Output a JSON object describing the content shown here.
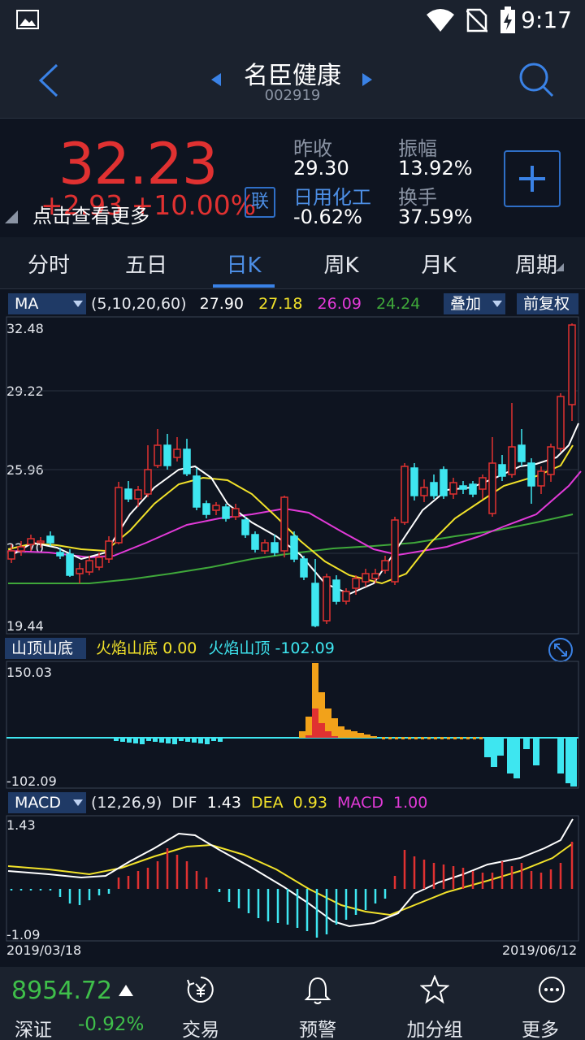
{
  "status": {
    "time": "9:17"
  },
  "header": {
    "title": "名臣健康",
    "code": "002919"
  },
  "quote": {
    "price": "32.23",
    "change": "+2.93  +10.00%",
    "tip": "点击查看更多",
    "link_badge": "联",
    "prev_close_label": "昨收",
    "prev_close": "29.30",
    "amplitude_label": "振幅",
    "amplitude": "13.92%",
    "sector_label": "日用化工",
    "sector_change": "-0.62%",
    "turnover_label": "换手",
    "turnover": "37.59%"
  },
  "tabs": [
    "分时",
    "五日",
    "日K",
    "周K",
    "月K",
    "周期"
  ],
  "active_tab": 2,
  "ma_bar": {
    "selector": "MA",
    "params": "(5,10,20,60)",
    "ma5": "27.90",
    "ma10": "27.18",
    "ma20": "26.09",
    "ma60": "24.24",
    "overlay_btn": "叠加",
    "adjust_btn": "前复权"
  },
  "price_axis": [
    "32.48",
    "29.22",
    "25.96",
    "22.70",
    "19.44"
  ],
  "indicator_bar": {
    "selector": "山顶山底",
    "label1": "火焰山底",
    "value1": "0.00",
    "label2": "火焰山顶",
    "value2": "-102.09"
  },
  "indicator_axis": {
    "top": "150.03",
    "bottom": "-102.09"
  },
  "macd_bar": {
    "selector": "MACD",
    "params": "(12,26,9)",
    "dif_label": "DIF",
    "dif": "1.43",
    "dea_label": "DEA",
    "dea": "0.93",
    "macd_label": "MACD",
    "macd": "1.00"
  },
  "macd_axis": {
    "top": "1.43",
    "bottom": "-1.09"
  },
  "dates": {
    "start": "2019/03/18",
    "end": "2019/06/12"
  },
  "bottom": {
    "index_value": "8954.72",
    "index_name": "深证",
    "index_change": "-0.92%",
    "nav": [
      {
        "label": "交易",
        "icon": "yuan-exchange-icon"
      },
      {
        "label": "预警",
        "icon": "bell-icon"
      },
      {
        "label": "加分组",
        "icon": "star-icon"
      },
      {
        "label": "更多",
        "icon": "more-icon"
      }
    ]
  },
  "colors": {
    "up": "#e03131",
    "down": "#3ee6f0",
    "ma5": "#ffffff",
    "ma10": "#f2e22a",
    "ma20": "#e23ad8",
    "ma60": "#3fa83a",
    "accent": "#3a82e6"
  }
}
